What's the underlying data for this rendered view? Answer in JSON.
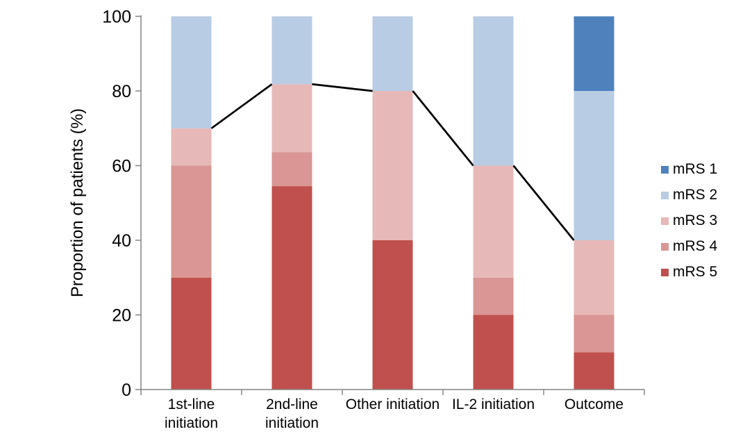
{
  "chart_data": {
    "type": "bar",
    "subtype": "stacked-100-percent-column",
    "title": "",
    "xlabel": "",
    "ylabel": "Proportion of patients (%)",
    "ylim": [
      0,
      100
    ],
    "yticks": [
      0,
      20,
      40,
      60,
      80,
      100
    ],
    "grid": "off",
    "background": "#FFFFFF",
    "categories": [
      "1st-line initiation",
      "2nd-line initiation",
      "Other initiation",
      "IL-2 initiation",
      "Outcome"
    ],
    "category_label_lines": [
      [
        "1st-line",
        "initiation"
      ],
      [
        "2nd-line",
        "initiation"
      ],
      [
        "Other initiation"
      ],
      [
        "IL-2 initiation"
      ],
      [
        "Outcome"
      ]
    ],
    "stack_order": "bottom-to-top",
    "series": [
      {
        "name": "mRS 5",
        "color": "#C0504D",
        "values": [
          30,
          54.5,
          40,
          20,
          10
        ]
      },
      {
        "name": "mRS 4",
        "color": "#D99694",
        "values": [
          30,
          9.1,
          0,
          10,
          10
        ]
      },
      {
        "name": "mRS 3",
        "color": "#E6B9B8",
        "values": [
          10,
          18.2,
          40,
          30,
          20
        ]
      },
      {
        "name": "mRS 2",
        "color": "#B8CCE4",
        "values": [
          30,
          18.2,
          20,
          40,
          40
        ]
      },
      {
        "name": "mRS 1",
        "color": "#4F81BD",
        "values": [
          0,
          0,
          0,
          0,
          20
        ]
      }
    ],
    "line_overlay": {
      "description": "black connector line at cumulative top of mRS 3 segment per bar",
      "values": [
        70,
        81.8,
        80,
        60,
        40
      ],
      "color": "#000000"
    },
    "legend": {
      "position": "right",
      "entries": [
        {
          "label": "mRS 1",
          "color": "#4F81BD"
        },
        {
          "label": "mRS 2",
          "color": "#B8CCE4"
        },
        {
          "label": "mRS 3",
          "color": "#E6B9B8"
        },
        {
          "label": "mRS 4",
          "color": "#D99694"
        },
        {
          "label": "mRS 5",
          "color": "#C0504D"
        }
      ]
    },
    "axis_color": "#848484",
    "text_color": "#000000"
  }
}
